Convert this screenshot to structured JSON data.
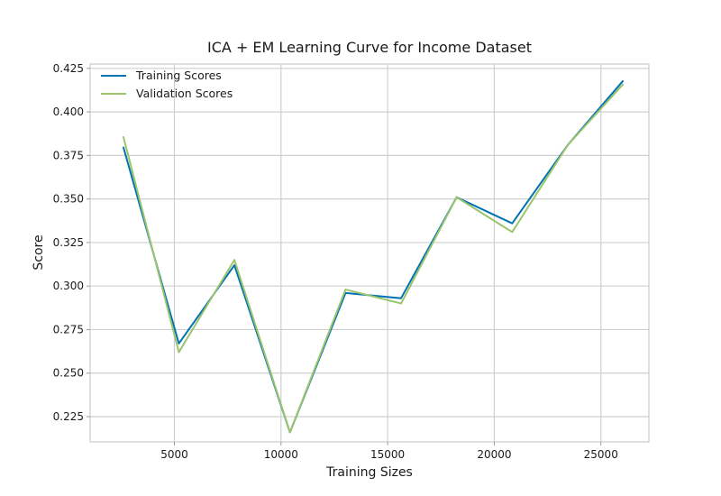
{
  "chart_data": {
    "type": "line",
    "title": "ICA + EM Learning Curve for Income Dataset",
    "xlabel": "Training Sizes",
    "ylabel": "Score",
    "x": [
      2605,
      5210,
      7815,
      10420,
      13025,
      15630,
      18235,
      20840,
      23445,
      26050
    ],
    "xlim": [
      1050,
      27250
    ],
    "ylim": [
      0.2105,
      0.4275
    ],
    "xticks": [
      5000,
      10000,
      15000,
      20000,
      25000
    ],
    "xtick_labels": [
      "5000",
      "10000",
      "15000",
      "20000",
      "25000"
    ],
    "yticks": [
      0.225,
      0.25,
      0.275,
      0.3,
      0.325,
      0.35,
      0.375,
      0.4,
      0.425
    ],
    "ytick_labels": [
      "0.225",
      "0.250",
      "0.275",
      "0.300",
      "0.325",
      "0.350",
      "0.375",
      "0.400",
      "0.425"
    ],
    "grid": true,
    "legend_position": "top-left",
    "series": [
      {
        "name": "Training Scores",
        "color": "#0072b2",
        "values": [
          0.38,
          0.267,
          0.312,
          0.216,
          0.296,
          0.293,
          0.351,
          0.336,
          0.381,
          0.418
        ]
      },
      {
        "name": "Validation Scores",
        "color": "#9bc46c",
        "values": [
          0.386,
          0.262,
          0.315,
          0.216,
          0.298,
          0.29,
          0.351,
          0.331,
          0.381,
          0.416
        ]
      }
    ]
  }
}
